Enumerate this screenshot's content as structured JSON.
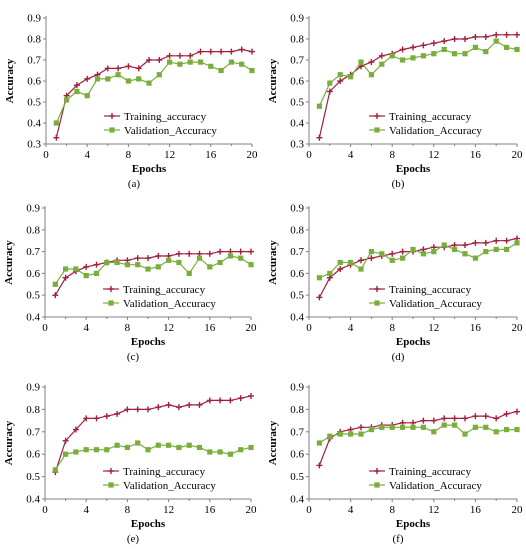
{
  "colors": {
    "training": "#A0203C",
    "validation": "#7AAE3C",
    "axis": "#808080"
  },
  "chart_data": [
    {
      "type": "line",
      "caption": "(a)",
      "xlabel": "Epochs",
      "ylabel": "Accuracy",
      "xlim": [
        0,
        20
      ],
      "ylim": [
        0.3,
        0.9
      ],
      "xticks": [
        0,
        4,
        8,
        12,
        16,
        20
      ],
      "yticks": [
        0.3,
        0.4,
        0.5,
        0.6,
        0.7,
        0.8,
        0.9
      ],
      "legend_position": "bottom-right",
      "grid": false,
      "x": [
        1,
        2,
        3,
        4,
        5,
        6,
        7,
        8,
        9,
        10,
        11,
        12,
        13,
        14,
        15,
        16,
        17,
        18,
        19,
        20
      ],
      "series": [
        {
          "name": "Training_accuracy",
          "marker": "plus",
          "values": [
            0.33,
            0.53,
            0.58,
            0.61,
            0.63,
            0.66,
            0.66,
            0.67,
            0.66,
            0.7,
            0.7,
            0.72,
            0.72,
            0.72,
            0.74,
            0.74,
            0.74,
            0.74,
            0.75,
            0.74
          ]
        },
        {
          "name": "Validation_Accuracy",
          "marker": "square",
          "values": [
            0.4,
            0.51,
            0.55,
            0.53,
            0.61,
            0.61,
            0.63,
            0.6,
            0.61,
            0.59,
            0.63,
            0.69,
            0.68,
            0.69,
            0.69,
            0.67,
            0.65,
            0.69,
            0.68,
            0.65
          ]
        }
      ]
    },
    {
      "type": "line",
      "caption": "(b)",
      "xlabel": "Epochs",
      "ylabel": "Accuracy",
      "xlim": [
        0,
        20
      ],
      "ylim": [
        0.3,
        0.9
      ],
      "xticks": [
        0,
        4,
        8,
        12,
        16,
        20
      ],
      "yticks": [
        0.3,
        0.4,
        0.5,
        0.6,
        0.7,
        0.8,
        0.9
      ],
      "legend_position": "bottom-right",
      "grid": false,
      "x": [
        1,
        2,
        3,
        4,
        5,
        6,
        7,
        8,
        9,
        10,
        11,
        12,
        13,
        14,
        15,
        16,
        17,
        18,
        19,
        20
      ],
      "series": [
        {
          "name": "Training_accuracy",
          "marker": "plus",
          "values": [
            0.33,
            0.55,
            0.6,
            0.63,
            0.67,
            0.69,
            0.72,
            0.73,
            0.75,
            0.76,
            0.77,
            0.78,
            0.79,
            0.8,
            0.8,
            0.81,
            0.81,
            0.82,
            0.82,
            0.82
          ]
        },
        {
          "name": "Validation_Accuracy",
          "marker": "square",
          "values": [
            0.48,
            0.59,
            0.63,
            0.62,
            0.69,
            0.63,
            0.68,
            0.72,
            0.7,
            0.71,
            0.72,
            0.73,
            0.75,
            0.73,
            0.73,
            0.76,
            0.74,
            0.79,
            0.76,
            0.75
          ]
        }
      ]
    },
    {
      "type": "line",
      "caption": "(c)",
      "xlabel": "Epochs",
      "ylabel": "Accuracy",
      "xlim": [
        0,
        20
      ],
      "ylim": [
        0.4,
        0.9
      ],
      "xticks": [
        0,
        4,
        8,
        12,
        16,
        20
      ],
      "yticks": [
        0.4,
        0.5,
        0.6,
        0.7,
        0.8,
        0.9
      ],
      "legend_position": "bottom-right",
      "grid": false,
      "x": [
        1,
        2,
        3,
        4,
        5,
        6,
        7,
        8,
        9,
        10,
        11,
        12,
        13,
        14,
        15,
        16,
        17,
        18,
        19,
        20
      ],
      "series": [
        {
          "name": "Training_accuracy",
          "marker": "plus",
          "values": [
            0.5,
            0.58,
            0.61,
            0.63,
            0.64,
            0.65,
            0.66,
            0.66,
            0.67,
            0.67,
            0.68,
            0.68,
            0.69,
            0.69,
            0.69,
            0.69,
            0.7,
            0.7,
            0.7,
            0.7
          ]
        },
        {
          "name": "Validation_Accuracy",
          "marker": "square",
          "values": [
            0.55,
            0.62,
            0.62,
            0.59,
            0.6,
            0.65,
            0.65,
            0.64,
            0.64,
            0.62,
            0.63,
            0.66,
            0.65,
            0.6,
            0.67,
            0.63,
            0.65,
            0.68,
            0.67,
            0.64
          ]
        }
      ]
    },
    {
      "type": "line",
      "caption": "(d)",
      "xlabel": "Epochs",
      "ylabel": "Accuracy",
      "xlim": [
        0,
        20
      ],
      "ylim": [
        0.4,
        0.9
      ],
      "xticks": [
        0,
        4,
        8,
        12,
        16,
        20
      ],
      "yticks": [
        0.4,
        0.5,
        0.6,
        0.7,
        0.8,
        0.9
      ],
      "legend_position": "bottom-right",
      "grid": false,
      "x": [
        1,
        2,
        3,
        4,
        5,
        6,
        7,
        8,
        9,
        10,
        11,
        12,
        13,
        14,
        15,
        16,
        17,
        18,
        19,
        20
      ],
      "series": [
        {
          "name": "Training_accuracy",
          "marker": "plus",
          "values": [
            0.49,
            0.58,
            0.62,
            0.64,
            0.66,
            0.67,
            0.68,
            0.69,
            0.7,
            0.7,
            0.71,
            0.72,
            0.72,
            0.73,
            0.73,
            0.74,
            0.74,
            0.75,
            0.75,
            0.76
          ]
        },
        {
          "name": "Validation_Accuracy",
          "marker": "square",
          "values": [
            0.58,
            0.6,
            0.65,
            0.65,
            0.62,
            0.7,
            0.69,
            0.66,
            0.67,
            0.71,
            0.69,
            0.7,
            0.73,
            0.71,
            0.69,
            0.67,
            0.7,
            0.71,
            0.71,
            0.74
          ]
        }
      ]
    },
    {
      "type": "line",
      "caption": "(e)",
      "xlabel": "Epochs",
      "ylabel": "Accuracy",
      "xlim": [
        0,
        20
      ],
      "ylim": [
        0.4,
        0.9
      ],
      "xticks": [
        0,
        4,
        8,
        12,
        16,
        20
      ],
      "yticks": [
        0.4,
        0.5,
        0.6,
        0.7,
        0.8,
        0.9
      ],
      "legend_position": "bottom-right",
      "grid": false,
      "x": [
        1,
        2,
        3,
        4,
        5,
        6,
        7,
        8,
        9,
        10,
        11,
        12,
        13,
        14,
        15,
        16,
        17,
        18,
        19,
        20
      ],
      "series": [
        {
          "name": "Training_accuracy",
          "marker": "plus",
          "values": [
            0.52,
            0.66,
            0.71,
            0.76,
            0.76,
            0.77,
            0.78,
            0.8,
            0.8,
            0.8,
            0.81,
            0.82,
            0.81,
            0.82,
            0.82,
            0.84,
            0.84,
            0.84,
            0.85,
            0.86
          ]
        },
        {
          "name": "Validation_Accuracy",
          "marker": "square",
          "values": [
            0.53,
            0.6,
            0.61,
            0.62,
            0.62,
            0.62,
            0.64,
            0.63,
            0.65,
            0.62,
            0.64,
            0.64,
            0.63,
            0.64,
            0.63,
            0.61,
            0.61,
            0.6,
            0.62,
            0.63
          ]
        }
      ]
    },
    {
      "type": "line",
      "caption": "(f)",
      "xlabel": "Epochs",
      "ylabel": "Accuracy",
      "xlim": [
        0,
        20
      ],
      "ylim": [
        0.4,
        0.9
      ],
      "xticks": [
        0,
        4,
        8,
        12,
        16,
        20
      ],
      "yticks": [
        0.4,
        0.5,
        0.6,
        0.7,
        0.8,
        0.9
      ],
      "legend_position": "bottom-right",
      "grid": false,
      "x": [
        1,
        2,
        3,
        4,
        5,
        6,
        7,
        8,
        9,
        10,
        11,
        12,
        13,
        14,
        15,
        16,
        17,
        18,
        19,
        20
      ],
      "series": [
        {
          "name": "Training_accuracy",
          "marker": "plus",
          "values": [
            0.55,
            0.67,
            0.7,
            0.71,
            0.72,
            0.72,
            0.73,
            0.73,
            0.74,
            0.74,
            0.75,
            0.75,
            0.76,
            0.76,
            0.76,
            0.77,
            0.77,
            0.76,
            0.78,
            0.79
          ]
        },
        {
          "name": "Validation_Accuracy",
          "marker": "square",
          "values": [
            0.65,
            0.68,
            0.69,
            0.69,
            0.69,
            0.71,
            0.72,
            0.72,
            0.72,
            0.72,
            0.72,
            0.7,
            0.73,
            0.73,
            0.69,
            0.72,
            0.72,
            0.7,
            0.71,
            0.71
          ]
        }
      ]
    }
  ]
}
